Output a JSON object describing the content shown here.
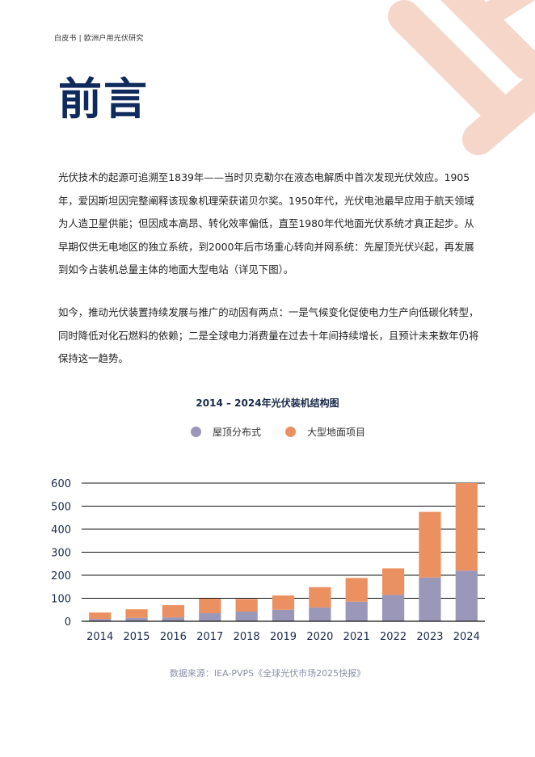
{
  "header": {
    "label": "白皮书 | 欧洲户用光伏研究"
  },
  "title": "前言",
  "paragraphs": [
    "光伏技术的起源可追溯至1839年——当时贝克勒尔在液态电解质中首次发现光伏效应。1905年，爱因斯坦因完整阐释该现象机理荣获诺贝尔奖。1950年代，光伏电池最早应用于航天领域为人造卫星供能；但因成本高昂、转化效率偏低，直至1980年代地面光伏系统才真正起步。从早期仅供无电地区的独立系统，到2000年后市场重心转向并网系统：先屋顶光伏兴起，再发展到如今占装机总量主体的地面大型电站（详见下图）。",
    "如今，推动光伏装置持续发展与推广的动因有两点：一是气候变化促使电力生产向低碳化转型，同时降低对化石燃料的依赖；二是全球电力消费量在过去十年间持续增长，且预计未来数年仍将保持这一趋势。"
  ],
  "colors": {
    "rooftop": "#9b97b8",
    "utility": "#eb9060",
    "title": "#0f2a5c",
    "deco": "#f6d6c8"
  },
  "chart_data": {
    "type": "bar",
    "stacked": true,
    "title": "2014 – 2024年光伏装机结构图",
    "categories": [
      "2014",
      "2015",
      "2016",
      "2017",
      "2018",
      "2019",
      "2020",
      "2021",
      "2022",
      "2023",
      "2024"
    ],
    "series": [
      {
        "name": "屋顶分布式",
        "values": [
          10,
          15,
          17,
          35,
          42,
          50,
          60,
          85,
          115,
          190,
          220
        ]
      },
      {
        "name": "大型地面项目",
        "values": [
          28,
          37,
          53,
          63,
          55,
          62,
          88,
          103,
          115,
          285,
          380
        ]
      }
    ],
    "ylim": [
      0,
      600
    ],
    "yticks": [
      0,
      100,
      200,
      300,
      400,
      500,
      600
    ],
    "grid": true,
    "legend": "top"
  },
  "source": "数据来源：IEA-PVPS《全球光伏市场2025快报》"
}
